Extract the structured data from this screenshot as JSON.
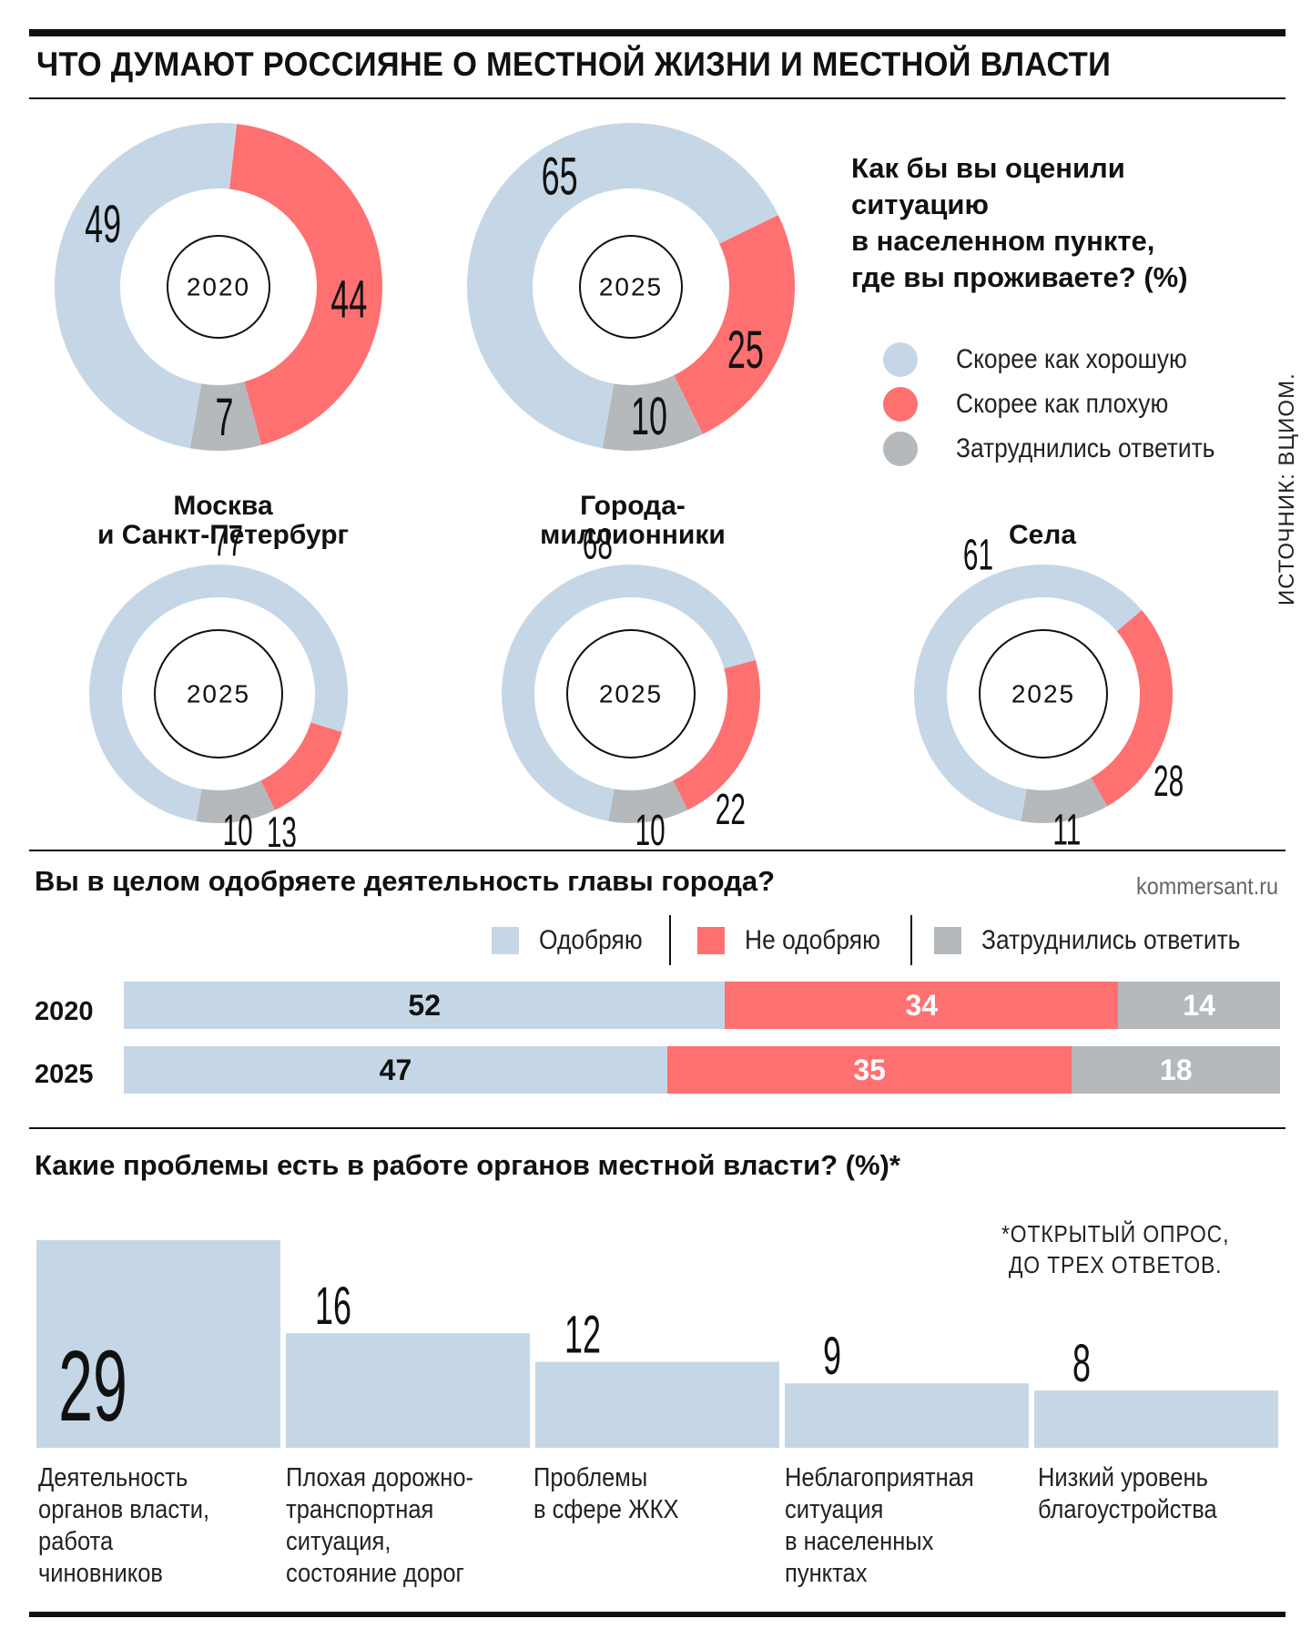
{
  "title": "ЧТО ДУМАЮТ РОССИЯНЕ О МЕСТНОЙ ЖИЗНИ И МЕСТНОЙ ВЛАСТИ",
  "colors": {
    "good": "#c5d7e6",
    "bad": "#ff7070",
    "unsure": "#b5b9bc"
  },
  "chart_data": [
    {
      "type": "pie",
      "title_lines": [
        "Как бы вы оценили",
        "ситуацию",
        "в населенном пункте,",
        "где вы проживаете? (%)"
      ],
      "legend": [
        "Скорее как хорошую",
        "Скорее как плохую",
        "Затруднились ответить"
      ],
      "groups": [
        "",
        "",
        "Москва и Санкт-Петербург",
        "Города-миллионники",
        "Села"
      ],
      "group_label_lines": [
        [
          "Москва",
          "и Санкт-Петербург"
        ],
        [
          "Города-",
          "миллионники"
        ],
        [
          "Села"
        ]
      ],
      "donuts": [
        {
          "year": "2020",
          "good": 49,
          "bad": 44,
          "unsure": 7
        },
        {
          "year": "2025",
          "good": 65,
          "bad": 25,
          "unsure": 10
        },
        {
          "year": "2025",
          "good": 77,
          "bad": 13,
          "unsure": 10
        },
        {
          "year": "2025",
          "good": 68,
          "bad": 22,
          "unsure": 10
        },
        {
          "year": "2025",
          "good": 61,
          "bad": 28,
          "unsure": 11
        }
      ]
    },
    {
      "type": "bar",
      "orientation": "horizontal-stacked",
      "title": "Вы в целом одобряете деятельность главы города?",
      "legend": [
        "Одобряю",
        "Не одобряю",
        "Затруднились ответить"
      ],
      "categories": [
        "2020",
        "2025"
      ],
      "series": [
        {
          "name": "Одобряю",
          "values": [
            52,
            47
          ]
        },
        {
          "name": "Не одобряю",
          "values": [
            34,
            35
          ]
        },
        {
          "name": "Затруднились ответить",
          "values": [
            14,
            18
          ]
        }
      ]
    },
    {
      "type": "bar",
      "title": "Какие проблемы есть в работе органов местной власти? (%)*",
      "note_lines": [
        "*ОТКРЫТЫЙ ОПРОС,",
        "ДО ТРЕХ ОТВЕТОВ."
      ],
      "categories": [
        "Деятельность органов власти, работа чиновников",
        "Плохая дорожно-транспортная ситуация, состояние дорог",
        "Проблемы в сфере ЖКХ",
        "Неблагоприятная ситуация в населенных пунктах",
        "Низкий уровень благоустройства"
      ],
      "category_lines": [
        [
          "Деятельность",
          "органов власти,",
          "работа",
          "чиновников"
        ],
        [
          "Плохая дорожно-",
          "транспортная",
          "ситуация,",
          "состояние дорог"
        ],
        [
          "Проблемы",
          "в сфере ЖКХ"
        ],
        [
          "Неблагоприятная",
          "ситуация",
          "в населенных",
          "пунктах"
        ],
        [
          "Низкий уровень",
          "благоустройства"
        ]
      ],
      "values": [
        29,
        16,
        12,
        9,
        8
      ],
      "ylim": [
        0,
        29
      ]
    }
  ],
  "source": "ИСТОЧНИК: ВЦИОМ.",
  "site": "kommersant.ru"
}
